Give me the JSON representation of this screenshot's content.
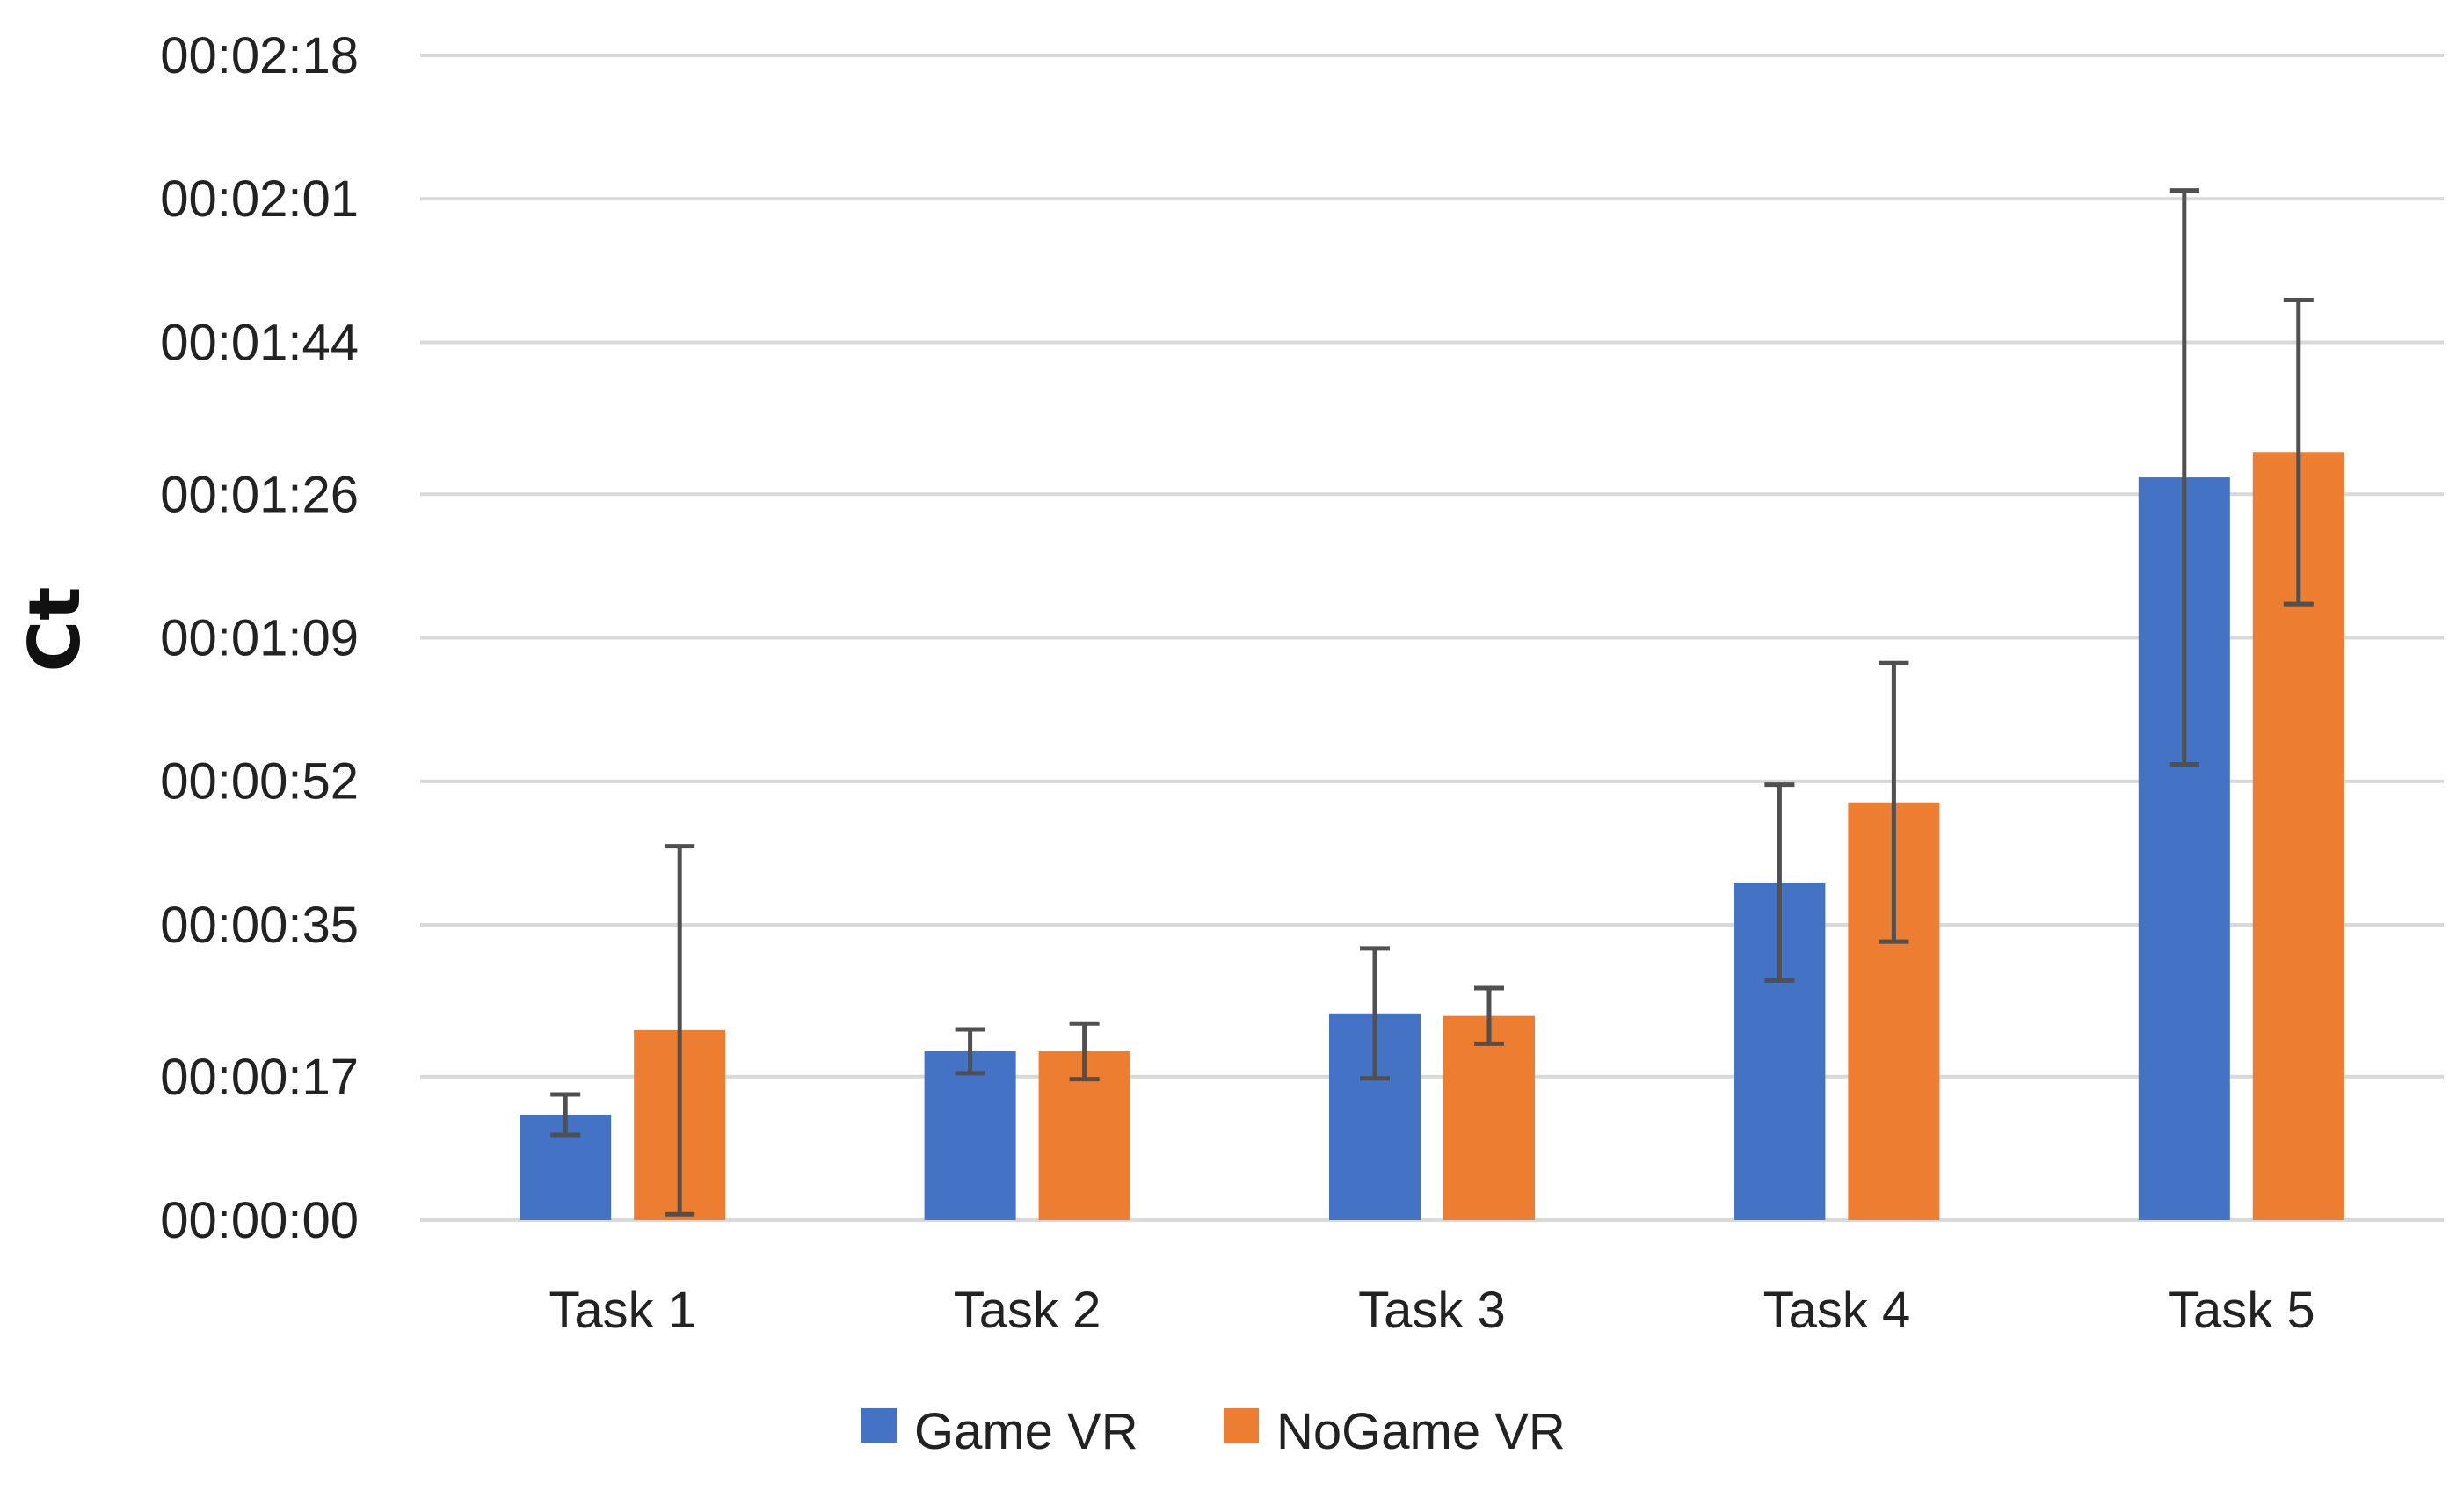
{
  "chart_data": {
    "type": "bar",
    "title": "",
    "xlabel": "",
    "ylabel": "Ct",
    "ylim_seconds": [
      0,
      138
    ],
    "y_ticks_seconds": [
      0,
      17,
      35,
      52,
      69,
      86,
      104,
      121,
      138
    ],
    "y_tick_labels": [
      "00:00:00",
      "00:00:17",
      "00:00:35",
      "00:00:52",
      "00:01:09",
      "00:01:26",
      "00:01:44",
      "00:02:01",
      "00:02:18"
    ],
    "categories": [
      "Task 1",
      "Task 2",
      "Task 3",
      "Task 4",
      "Task 5"
    ],
    "series": [
      {
        "name": "Game VR",
        "color": "#4472C4",
        "values_seconds": [
          12.5,
          20,
          24.5,
          40,
          88
        ],
        "error_seconds": [
          2.4,
          2.6,
          7.7,
          11.6,
          34
        ]
      },
      {
        "name": "NoGame VR",
        "color": "#ED7D31",
        "values_seconds": [
          22.5,
          20,
          24.2,
          49.5,
          91
        ],
        "error_seconds": [
          21.8,
          3.3,
          3.3,
          16.5,
          18
        ]
      }
    ],
    "grid": true,
    "legend_position": "bottom-center"
  }
}
